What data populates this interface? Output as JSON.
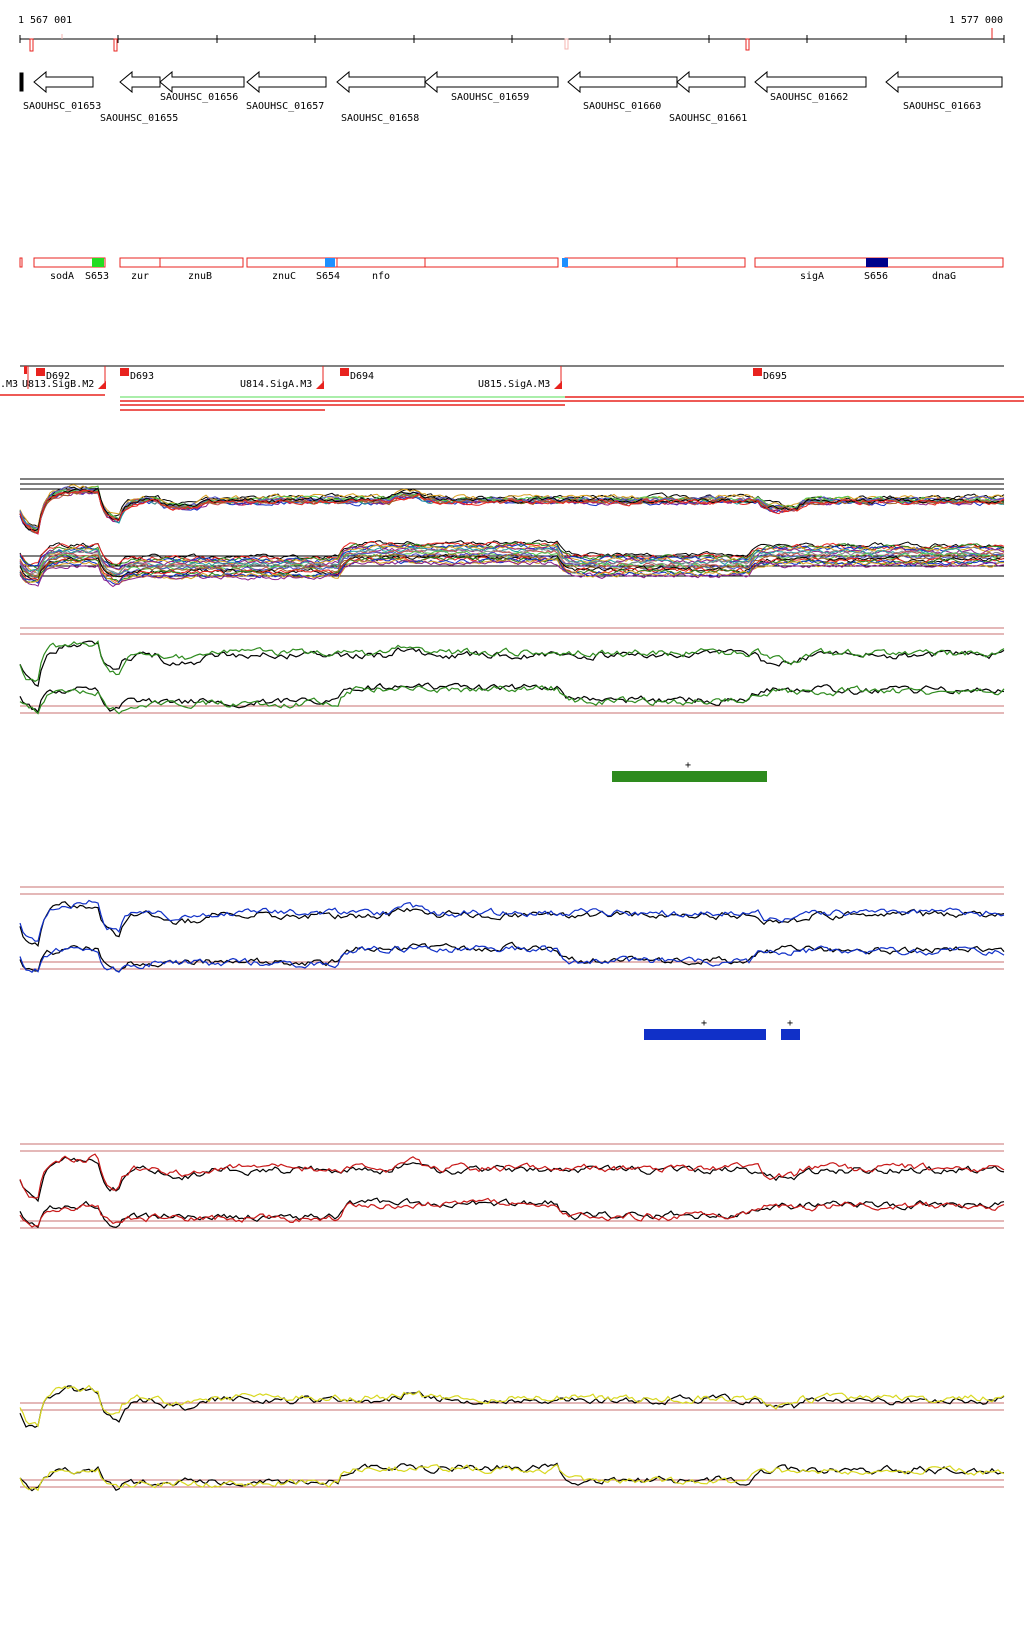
{
  "coords": {
    "start": "1 567 001",
    "end": "1 577 000"
  },
  "colors": {
    "gene_outline": "#000000",
    "operon_outline": "#e8231f",
    "axis_red": "#e8231f",
    "green": "#2e8b1e",
    "blue": "#1030c8",
    "red": "#c81818",
    "yellow": "#d8d820",
    "navy": "#00008b",
    "lightblue": "#1e90ff",
    "bright_green": "#22dd22"
  },
  "genes": [
    {
      "label": "SAOUHSC_01653"
    },
    {
      "label": "SAOUHSC_01655"
    },
    {
      "label": "SAOUHSC_01656"
    },
    {
      "label": "SAOUHSC_01657"
    },
    {
      "label": "SAOUHSC_01658"
    },
    {
      "label": "SAOUHSC_01659"
    },
    {
      "label": "SAOUHSC_01660"
    },
    {
      "label": "SAOUHSC_01661"
    },
    {
      "label": "SAOUHSC_01662"
    },
    {
      "label": "SAOUHSC_01663"
    }
  ],
  "operon_labels": [
    "sodA",
    "S653",
    "zur",
    "znuB",
    "znuC",
    "S654",
    "nfo",
    "sigA",
    "S656",
    "dnaG"
  ],
  "features": [
    "D692",
    "D693",
    "D694",
    "D695",
    ".M3",
    "U813.SigB.M2",
    "U814.SigA.M3",
    "U815.SigA.M3"
  ],
  "segment_marks": [
    "+",
    "+",
    "+"
  ]
}
